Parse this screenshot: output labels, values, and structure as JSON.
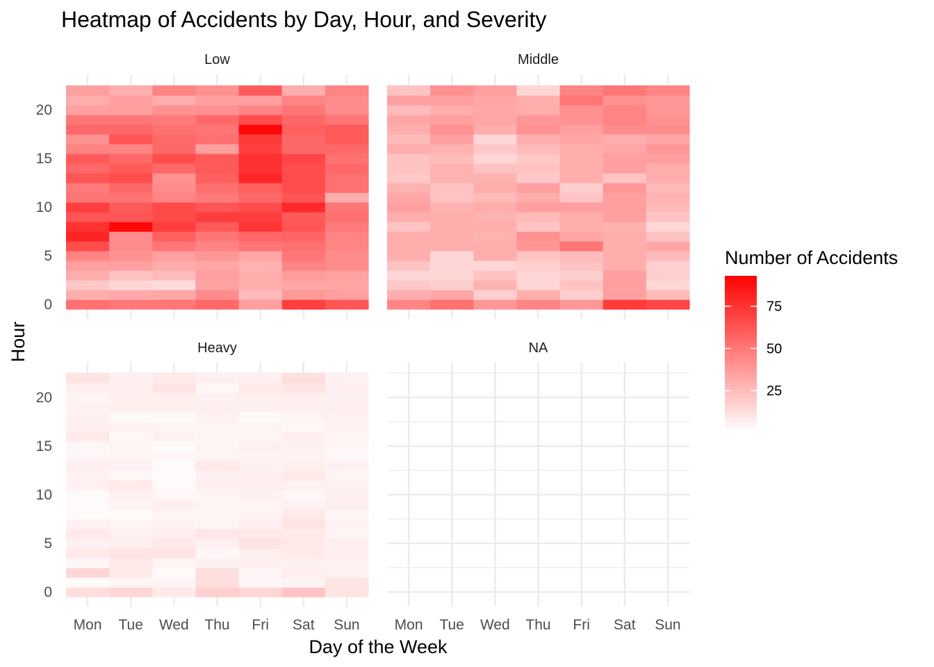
{
  "chart_data": {
    "type": "heatmap",
    "title": "Heatmap of Accidents by Day, Hour, and Severity",
    "xlabel": "Day of the Week",
    "ylabel": "Hour",
    "x_categories": [
      "Mon",
      "Tue",
      "Wed",
      "Thu",
      "Fri",
      "Sat",
      "Sun"
    ],
    "y_ticks": [
      0,
      5,
      10,
      15,
      20
    ],
    "ylim": [
      0,
      23
    ],
    "legend": {
      "title": "Number of Accidents",
      "ticks": [
        25,
        50,
        75
      ],
      "min": 0,
      "max": 93,
      "low_color": "#ffffff",
      "high_color": "#ff0000",
      "placement": "right"
    },
    "grid": true,
    "panels": [
      {
        "name": "Low",
        "rows": [
          [
            52,
            49,
            50,
            55,
            35,
            70,
            62
          ],
          [
            30,
            31,
            32,
            42,
            25,
            37,
            35
          ],
          [
            20,
            15,
            13,
            34,
            30,
            32,
            33
          ],
          [
            30,
            22,
            25,
            35,
            30,
            36,
            34
          ],
          [
            35,
            35,
            30,
            32,
            28,
            45,
            42
          ],
          [
            45,
            40,
            35,
            38,
            32,
            50,
            42
          ],
          [
            65,
            42,
            50,
            45,
            50,
            52,
            45
          ],
          [
            80,
            42,
            58,
            50,
            55,
            56,
            45
          ],
          [
            75,
            90,
            70,
            60,
            74,
            62,
            48
          ],
          [
            62,
            62,
            66,
            71,
            70,
            60,
            52
          ],
          [
            70,
            60,
            66,
            62,
            65,
            78,
            50
          ],
          [
            50,
            51,
            45,
            48,
            55,
            62,
            30
          ],
          [
            48,
            55,
            42,
            52,
            58,
            65,
            52
          ],
          [
            62,
            65,
            40,
            58,
            80,
            65,
            52
          ],
          [
            55,
            60,
            55,
            60,
            75,
            65,
            55
          ],
          [
            60,
            55,
            65,
            60,
            75,
            68,
            52
          ],
          [
            45,
            45,
            55,
            35,
            70,
            55,
            55
          ],
          [
            40,
            62,
            55,
            52,
            72,
            55,
            60
          ],
          [
            55,
            55,
            52,
            50,
            90,
            58,
            60
          ],
          [
            50,
            50,
            48,
            55,
            65,
            55,
            50
          ],
          [
            35,
            35,
            40,
            40,
            45,
            50,
            42
          ],
          [
            30,
            35,
            30,
            35,
            35,
            45,
            42
          ],
          [
            35,
            30,
            45,
            40,
            60,
            30,
            45
          ]
        ]
      },
      {
        "name": "Middle",
        "rows": [
          [
            45,
            52,
            38,
            45,
            38,
            72,
            68
          ],
          [
            30,
            32,
            18,
            30,
            18,
            35,
            25
          ],
          [
            20,
            18,
            28,
            15,
            22,
            35,
            15
          ],
          [
            15,
            15,
            22,
            15,
            18,
            35,
            18
          ],
          [
            22,
            15,
            15,
            18,
            22,
            30,
            18
          ],
          [
            30,
            15,
            30,
            22,
            25,
            30,
            25
          ],
          [
            30,
            30,
            30,
            38,
            50,
            30,
            32
          ],
          [
            30,
            30,
            28,
            40,
            32,
            30,
            22
          ],
          [
            22,
            30,
            30,
            22,
            30,
            28,
            15
          ],
          [
            30,
            30,
            28,
            25,
            30,
            35,
            22
          ],
          [
            35,
            28,
            30,
            35,
            35,
            35,
            25
          ],
          [
            32,
            22,
            25,
            30,
            22,
            35,
            28
          ],
          [
            28,
            22,
            30,
            35,
            18,
            38,
            25
          ],
          [
            20,
            28,
            28,
            20,
            30,
            22,
            30
          ],
          [
            22,
            28,
            22,
            22,
            30,
            35,
            30
          ],
          [
            22,
            25,
            15,
            20,
            30,
            35,
            35
          ],
          [
            30,
            28,
            20,
            25,
            30,
            32,
            38
          ],
          [
            25,
            35,
            15,
            30,
            32,
            30,
            32
          ],
          [
            30,
            40,
            30,
            40,
            35,
            42,
            42
          ],
          [
            32,
            35,
            32,
            38,
            40,
            45,
            40
          ],
          [
            25,
            30,
            32,
            30,
            40,
            45,
            38
          ],
          [
            35,
            35,
            32,
            30,
            50,
            40,
            38
          ],
          [
            22,
            40,
            35,
            15,
            45,
            50,
            45
          ]
        ]
      },
      {
        "name": "Heavy",
        "rows": [
          [
            12,
            15,
            8,
            18,
            15,
            22,
            10
          ],
          [
            2,
            4,
            4,
            12,
            3,
            4,
            10
          ],
          [
            15,
            8,
            2,
            12,
            3,
            6,
            5
          ],
          [
            3,
            8,
            4,
            5,
            6,
            5,
            5
          ],
          [
            8,
            10,
            10,
            3,
            6,
            8,
            6
          ],
          [
            5,
            6,
            8,
            5,
            10,
            8,
            6
          ],
          [
            8,
            5,
            6,
            9,
            8,
            8,
            4
          ],
          [
            5,
            4,
            5,
            4,
            6,
            10,
            5
          ],
          [
            2,
            2,
            4,
            4,
            4,
            8,
            3
          ],
          [
            2,
            4,
            6,
            4,
            4,
            5,
            6
          ],
          [
            2,
            5,
            3,
            4,
            5,
            3,
            6
          ],
          [
            5,
            8,
            2,
            6,
            6,
            5,
            5
          ],
          [
            5,
            3,
            2,
            5,
            6,
            8,
            4
          ],
          [
            6,
            5,
            2,
            8,
            5,
            6,
            5
          ],
          [
            3,
            4,
            3,
            4,
            5,
            5,
            3
          ],
          [
            3,
            4,
            2,
            4,
            6,
            5,
            3
          ],
          [
            8,
            3,
            5,
            4,
            4,
            6,
            4
          ],
          [
            6,
            5,
            4,
            4,
            4,
            3,
            5
          ],
          [
            5,
            2,
            2,
            5,
            2,
            4,
            5
          ],
          [
            5,
            6,
            6,
            6,
            5,
            6,
            6
          ],
          [
            4,
            6,
            6,
            5,
            6,
            6,
            5
          ],
          [
            6,
            6,
            10,
            3,
            8,
            10,
            6
          ],
          [
            10,
            6,
            8,
            5,
            6,
            12,
            5
          ]
        ]
      },
      {
        "name": "NA",
        "rows": [
          [],
          [],
          [],
          [],
          [],
          [],
          [],
          [],
          [],
          [],
          [],
          [],
          [],
          [],
          [],
          [],
          [],
          [],
          [],
          [],
          [],
          [],
          []
        ]
      }
    ]
  }
}
